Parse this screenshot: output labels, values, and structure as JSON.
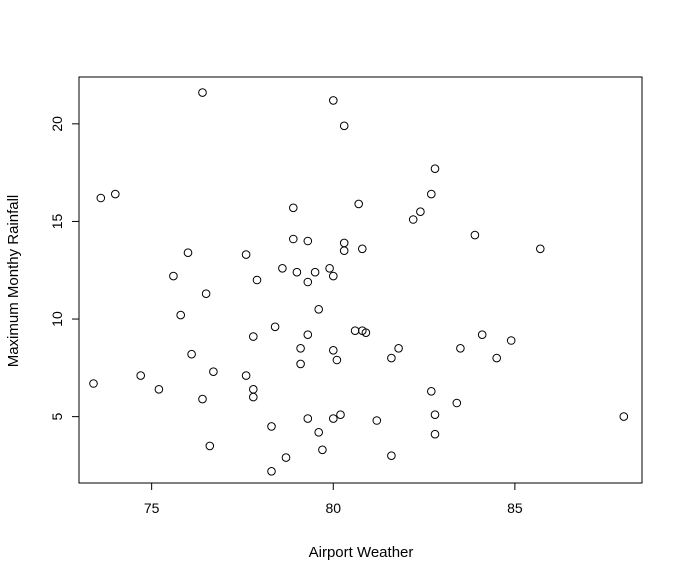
{
  "chart_data": {
    "type": "scatter",
    "title": "",
    "xlabel": "Airport Weather",
    "ylabel": "Maximum Monthy Rainfall",
    "xlim": [
      73.0,
      88.5
    ],
    "ylim": [
      1.6,
      22.4
    ],
    "xticks": [
      75,
      80,
      85
    ],
    "yticks": [
      5,
      10,
      15,
      20
    ],
    "grid": false,
    "legend": "none",
    "marker": "open-circle",
    "points": [
      {
        "x": 73.4,
        "y": 6.7
      },
      {
        "x": 73.6,
        "y": 16.2
      },
      {
        "x": 74.0,
        "y": 16.4
      },
      {
        "x": 74.7,
        "y": 7.1
      },
      {
        "x": 75.2,
        "y": 6.4
      },
      {
        "x": 75.6,
        "y": 12.2
      },
      {
        "x": 75.8,
        "y": 10.2
      },
      {
        "x": 76.0,
        "y": 13.4
      },
      {
        "x": 76.1,
        "y": 8.2
      },
      {
        "x": 76.4,
        "y": 21.6
      },
      {
        "x": 76.4,
        "y": 5.9
      },
      {
        "x": 76.5,
        "y": 11.3
      },
      {
        "x": 76.6,
        "y": 3.5
      },
      {
        "x": 76.7,
        "y": 7.3
      },
      {
        "x": 77.6,
        "y": 13.3
      },
      {
        "x": 77.6,
        "y": 7.1
      },
      {
        "x": 77.8,
        "y": 9.1
      },
      {
        "x": 77.8,
        "y": 6.4
      },
      {
        "x": 77.8,
        "y": 6.0
      },
      {
        "x": 77.9,
        "y": 12.0
      },
      {
        "x": 78.3,
        "y": 4.5
      },
      {
        "x": 78.3,
        "y": 2.2
      },
      {
        "x": 78.4,
        "y": 9.6
      },
      {
        "x": 78.6,
        "y": 12.6
      },
      {
        "x": 78.7,
        "y": 2.9
      },
      {
        "x": 78.9,
        "y": 15.7
      },
      {
        "x": 78.9,
        "y": 14.1
      },
      {
        "x": 79.0,
        "y": 12.4
      },
      {
        "x": 79.1,
        "y": 8.5
      },
      {
        "x": 79.1,
        "y": 7.7
      },
      {
        "x": 79.3,
        "y": 14.0
      },
      {
        "x": 79.3,
        "y": 11.9
      },
      {
        "x": 79.3,
        "y": 9.2
      },
      {
        "x": 79.3,
        "y": 4.9
      },
      {
        "x": 79.5,
        "y": 12.4
      },
      {
        "x": 79.6,
        "y": 10.5
      },
      {
        "x": 79.6,
        "y": 4.2
      },
      {
        "x": 79.7,
        "y": 3.3
      },
      {
        "x": 79.9,
        "y": 12.6
      },
      {
        "x": 80.0,
        "y": 21.2
      },
      {
        "x": 80.0,
        "y": 12.2
      },
      {
        "x": 80.0,
        "y": 8.4
      },
      {
        "x": 80.0,
        "y": 4.9
      },
      {
        "x": 80.1,
        "y": 7.9
      },
      {
        "x": 80.2,
        "y": 5.1
      },
      {
        "x": 80.3,
        "y": 19.9
      },
      {
        "x": 80.3,
        "y": 13.9
      },
      {
        "x": 80.3,
        "y": 13.5
      },
      {
        "x": 80.6,
        "y": 9.4
      },
      {
        "x": 80.7,
        "y": 15.9
      },
      {
        "x": 80.8,
        "y": 13.6
      },
      {
        "x": 80.8,
        "y": 9.4
      },
      {
        "x": 80.9,
        "y": 9.3
      },
      {
        "x": 81.2,
        "y": 4.8
      },
      {
        "x": 81.6,
        "y": 8.0
      },
      {
        "x": 81.6,
        "y": 3.0
      },
      {
        "x": 81.8,
        "y": 8.5
      },
      {
        "x": 82.2,
        "y": 15.1
      },
      {
        "x": 82.4,
        "y": 15.5
      },
      {
        "x": 82.7,
        "y": 16.4
      },
      {
        "x": 82.7,
        "y": 6.3
      },
      {
        "x": 82.8,
        "y": 17.7
      },
      {
        "x": 82.8,
        "y": 5.1
      },
      {
        "x": 82.8,
        "y": 4.1
      },
      {
        "x": 83.4,
        "y": 5.7
      },
      {
        "x": 83.5,
        "y": 8.5
      },
      {
        "x": 83.9,
        "y": 14.3
      },
      {
        "x": 84.1,
        "y": 9.2
      },
      {
        "x": 84.5,
        "y": 8.0
      },
      {
        "x": 84.9,
        "y": 8.9
      },
      {
        "x": 85.7,
        "y": 13.6
      },
      {
        "x": 88.0,
        "y": 5.0
      }
    ]
  }
}
